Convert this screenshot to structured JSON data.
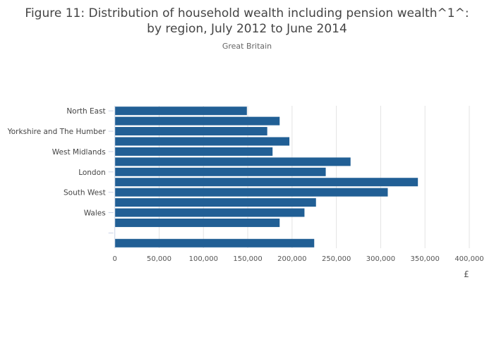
{
  "chart_data": {
    "type": "bar",
    "orientation": "horizontal",
    "title_line1": "Figure 11: Distribution of household wealth including pension wealth^1^:",
    "title_line2": "by region, July 2012 to June 2014",
    "subtitle": "Great Britain",
    "xlabel": "£",
    "xlim": [
      0,
      400000
    ],
    "xticks": [
      0,
      50000,
      100000,
      150000,
      200000,
      250000,
      300000,
      350000,
      400000
    ],
    "xtick_labels": [
      "0",
      "50,000",
      "100,000",
      "150,000",
      "200,000",
      "250,000",
      "300,000",
      "350,000",
      "400,000"
    ],
    "grid": true,
    "bar_color": "#215f95",
    "categories": [
      "North East",
      "",
      "Yorkshire and The Humber",
      "",
      "West Midlands",
      "",
      "London",
      "",
      "South West",
      "",
      "Wales",
      "",
      "",
      ""
    ],
    "values": [
      149000,
      186000,
      172000,
      197000,
      178000,
      266000,
      238000,
      342000,
      308000,
      227000,
      214000,
      186000,
      null,
      225000
    ]
  }
}
